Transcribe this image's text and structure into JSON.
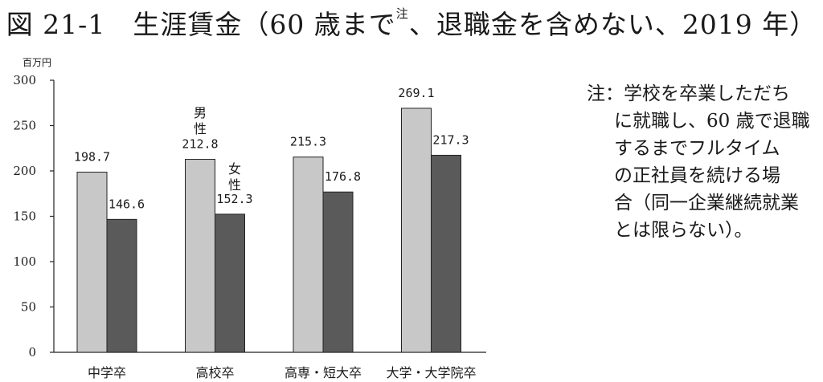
{
  "title": {
    "main": "図 21-1　生涯賃金（60 歳まで",
    "sup": "注",
    "rest": "、退職金を含めない、2019 年）"
  },
  "note": {
    "prefix": "注：",
    "lines": [
      "学校を卒業しただち",
      "に就職し、60 歳で退職",
      "するまでフルタイム",
      "の正社員を続ける場",
      "合（同一企業継続就業",
      "とは限らない）。"
    ]
  },
  "chart_data": {
    "type": "bar",
    "unit_label": "百万円",
    "categories": [
      "中学卒",
      "高校卒",
      "高専・短大卒",
      "大学・大学院卒"
    ],
    "series": [
      {
        "name": "男性",
        "values": [
          198.7,
          212.8,
          215.3,
          269.1
        ],
        "color": "#c8c8c8"
      },
      {
        "name": "女性",
        "values": [
          146.6,
          152.3,
          176.8,
          217.3
        ],
        "color": "#5a5a5a"
      }
    ],
    "data_labels": {
      "男性": [
        "198.7",
        "212.8",
        "215.3",
        "269.1"
      ],
      "女性": [
        "146.6",
        "152.3",
        "176.8",
        "217.3"
      ]
    },
    "yticks": [
      0,
      50,
      100,
      150,
      200,
      250,
      300
    ],
    "ylim": [
      0,
      300
    ],
    "legend": {
      "male": [
        "男",
        "性"
      ],
      "female": [
        "女",
        "性"
      ],
      "placement": "inline above 高校卒 bars"
    }
  }
}
